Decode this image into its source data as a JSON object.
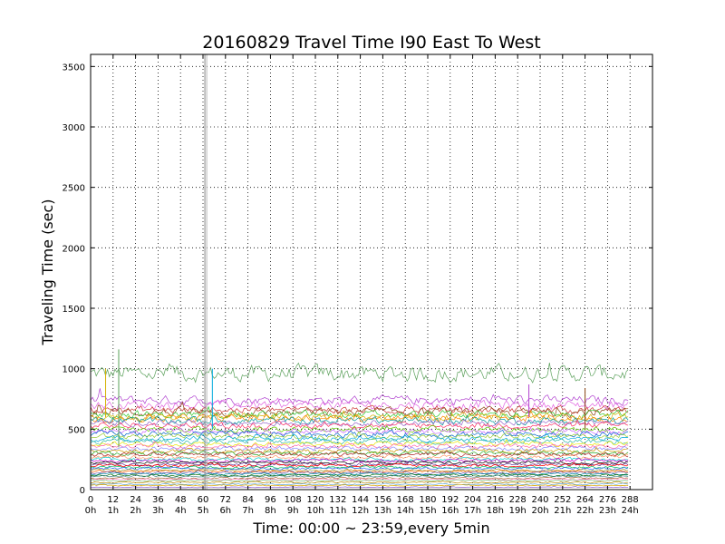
{
  "chart_data": {
    "type": "line",
    "title": "20160829 Travel Time I90 East To West",
    "xlabel": "Time: 00:00 ~ 23:59,every 5min",
    "ylabel": "Traveling Time (sec)",
    "xlim": [
      0,
      300
    ],
    "ylim": [
      0,
      3600
    ],
    "grid": true,
    "x_ticks": [
      {
        "value": 0,
        "label": "0",
        "sublabel": "0h"
      },
      {
        "value": 12,
        "label": "12",
        "sublabel": "1h"
      },
      {
        "value": 24,
        "label": "24",
        "sublabel": "2h"
      },
      {
        "value": 36,
        "label": "36",
        "sublabel": "3h"
      },
      {
        "value": 48,
        "label": "48",
        "sublabel": "4h"
      },
      {
        "value": 60,
        "label": "60",
        "sublabel": "5h"
      },
      {
        "value": 72,
        "label": "72",
        "sublabel": "6h"
      },
      {
        "value": 84,
        "label": "84",
        "sublabel": "7h"
      },
      {
        "value": 96,
        "label": "96",
        "sublabel": "8h"
      },
      {
        "value": 108,
        "label": "108",
        "sublabel": "9h"
      },
      {
        "value": 120,
        "label": "120",
        "sublabel": "10h"
      },
      {
        "value": 132,
        "label": "132",
        "sublabel": "11h"
      },
      {
        "value": 144,
        "label": "144",
        "sublabel": "12h"
      },
      {
        "value": 156,
        "label": "156",
        "sublabel": "13h"
      },
      {
        "value": 168,
        "label": "168",
        "sublabel": "14h"
      },
      {
        "value": 180,
        "label": "180",
        "sublabel": "15h"
      },
      {
        "value": 192,
        "label": "192",
        "sublabel": "16h"
      },
      {
        "value": 204,
        "label": "204",
        "sublabel": "17h"
      },
      {
        "value": 216,
        "label": "216",
        "sublabel": "18h"
      },
      {
        "value": 228,
        "label": "228",
        "sublabel": "19h"
      },
      {
        "value": 240,
        "label": "240",
        "sublabel": "20h"
      },
      {
        "value": 252,
        "label": "252",
        "sublabel": "21h"
      },
      {
        "value": 264,
        "label": "264",
        "sublabel": "22h"
      },
      {
        "value": 276,
        "label": "276",
        "sublabel": "23h"
      },
      {
        "value": 288,
        "label": "288",
        "sublabel": "24h"
      }
    ],
    "y_ticks": [
      0,
      500,
      1000,
      1500,
      2000,
      2500,
      3000,
      3500
    ],
    "series_points": 288,
    "series": [
      {
        "base": 960,
        "noise": 55,
        "color": "#5aa05a"
      },
      {
        "base": 740,
        "noise": 30,
        "color": "#b040d0"
      },
      {
        "base": 700,
        "noise": 30,
        "color": "#e060e0"
      },
      {
        "base": 660,
        "noise": 25,
        "color": "#cc3333"
      },
      {
        "base": 640,
        "noise": 30,
        "color": "#8b4513"
      },
      {
        "base": 620,
        "noise": 25,
        "color": "#33cc33"
      },
      {
        "base": 600,
        "noise": 25,
        "color": "#d4b000"
      },
      {
        "base": 590,
        "noise": 25,
        "color": "#ff8800"
      },
      {
        "base": 570,
        "noise": 25,
        "color": "#009999"
      },
      {
        "base": 550,
        "noise": 20,
        "color": "#9966cc"
      },
      {
        "base": 530,
        "noise": 20,
        "color": "#ff3366"
      },
      {
        "base": 500,
        "noise": 20,
        "color": "#66cc00"
      },
      {
        "base": 480,
        "noise": 20,
        "color": "#cc66ff"
      },
      {
        "base": 460,
        "noise": 20,
        "color": "#0066cc"
      },
      {
        "base": 440,
        "noise": 18,
        "color": "#99cc33"
      },
      {
        "base": 420,
        "noise": 18,
        "color": "#00aadd"
      },
      {
        "base": 400,
        "noise": 18,
        "color": "#33bbaa"
      },
      {
        "base": 380,
        "noise": 15,
        "color": "#e8e800"
      },
      {
        "base": 360,
        "noise": 15,
        "color": "#ff66aa"
      },
      {
        "base": 340,
        "noise": 15,
        "color": "#8888ff"
      },
      {
        "base": 320,
        "noise": 15,
        "color": "#cc9900"
      },
      {
        "base": 300,
        "noise": 14,
        "color": "#22aa22"
      },
      {
        "base": 290,
        "noise": 14,
        "color": "#aa2222"
      },
      {
        "base": 270,
        "noise": 12,
        "color": "#ff9966"
      },
      {
        "base": 250,
        "noise": 12,
        "color": "#00cccc"
      },
      {
        "base": 240,
        "noise": 12,
        "color": "#cc00cc"
      },
      {
        "base": 225,
        "noise": 10,
        "color": "#000000"
      },
      {
        "base": 210,
        "noise": 10,
        "color": "#663399"
      },
      {
        "base": 200,
        "noise": 10,
        "color": "#ff0000"
      },
      {
        "base": 185,
        "noise": 9,
        "color": "#00bb55"
      },
      {
        "base": 175,
        "noise": 9,
        "color": "#3366ff"
      },
      {
        "base": 160,
        "noise": 8,
        "color": "#999933"
      },
      {
        "base": 150,
        "noise": 8,
        "color": "#ff6600"
      },
      {
        "base": 140,
        "noise": 8,
        "color": "#7755aa"
      },
      {
        "base": 130,
        "noise": 7,
        "color": "#0088aa"
      },
      {
        "base": 120,
        "noise": 7,
        "color": "#117711"
      },
      {
        "base": 110,
        "noise": 6,
        "color": "#448888"
      },
      {
        "base": 95,
        "noise": 6,
        "color": "#aa6633"
      },
      {
        "base": 85,
        "noise": 5,
        "color": "#ff88cc"
      },
      {
        "base": 75,
        "noise": 5,
        "color": "#77bb77"
      },
      {
        "base": 60,
        "noise": 5,
        "color": "#bb8800"
      },
      {
        "base": 45,
        "noise": 4,
        "color": "#66aadd"
      },
      {
        "base": 35,
        "noise": 4,
        "color": "#d9a400"
      },
      {
        "base": 20,
        "noise": 3,
        "color": "#8855cc"
      }
    ],
    "spikes": [
      {
        "x": 61,
        "y_from": 0,
        "y_to": 3600,
        "color": "#888888"
      },
      {
        "x": 62,
        "y_from": 0,
        "y_to": 3600,
        "color": "#bbbbbb"
      },
      {
        "x": 8,
        "y_from": 600,
        "y_to": 1000,
        "color": "#d4b000"
      },
      {
        "x": 15,
        "y_from": 350,
        "y_to": 1160,
        "color": "#5aa05a"
      },
      {
        "x": 65,
        "y_from": 500,
        "y_to": 1000,
        "color": "#00aadd"
      },
      {
        "x": 234,
        "y_from": 600,
        "y_to": 870,
        "color": "#b040d0"
      },
      {
        "x": 264,
        "y_from": 500,
        "y_to": 840,
        "color": "#8b4513"
      }
    ]
  }
}
